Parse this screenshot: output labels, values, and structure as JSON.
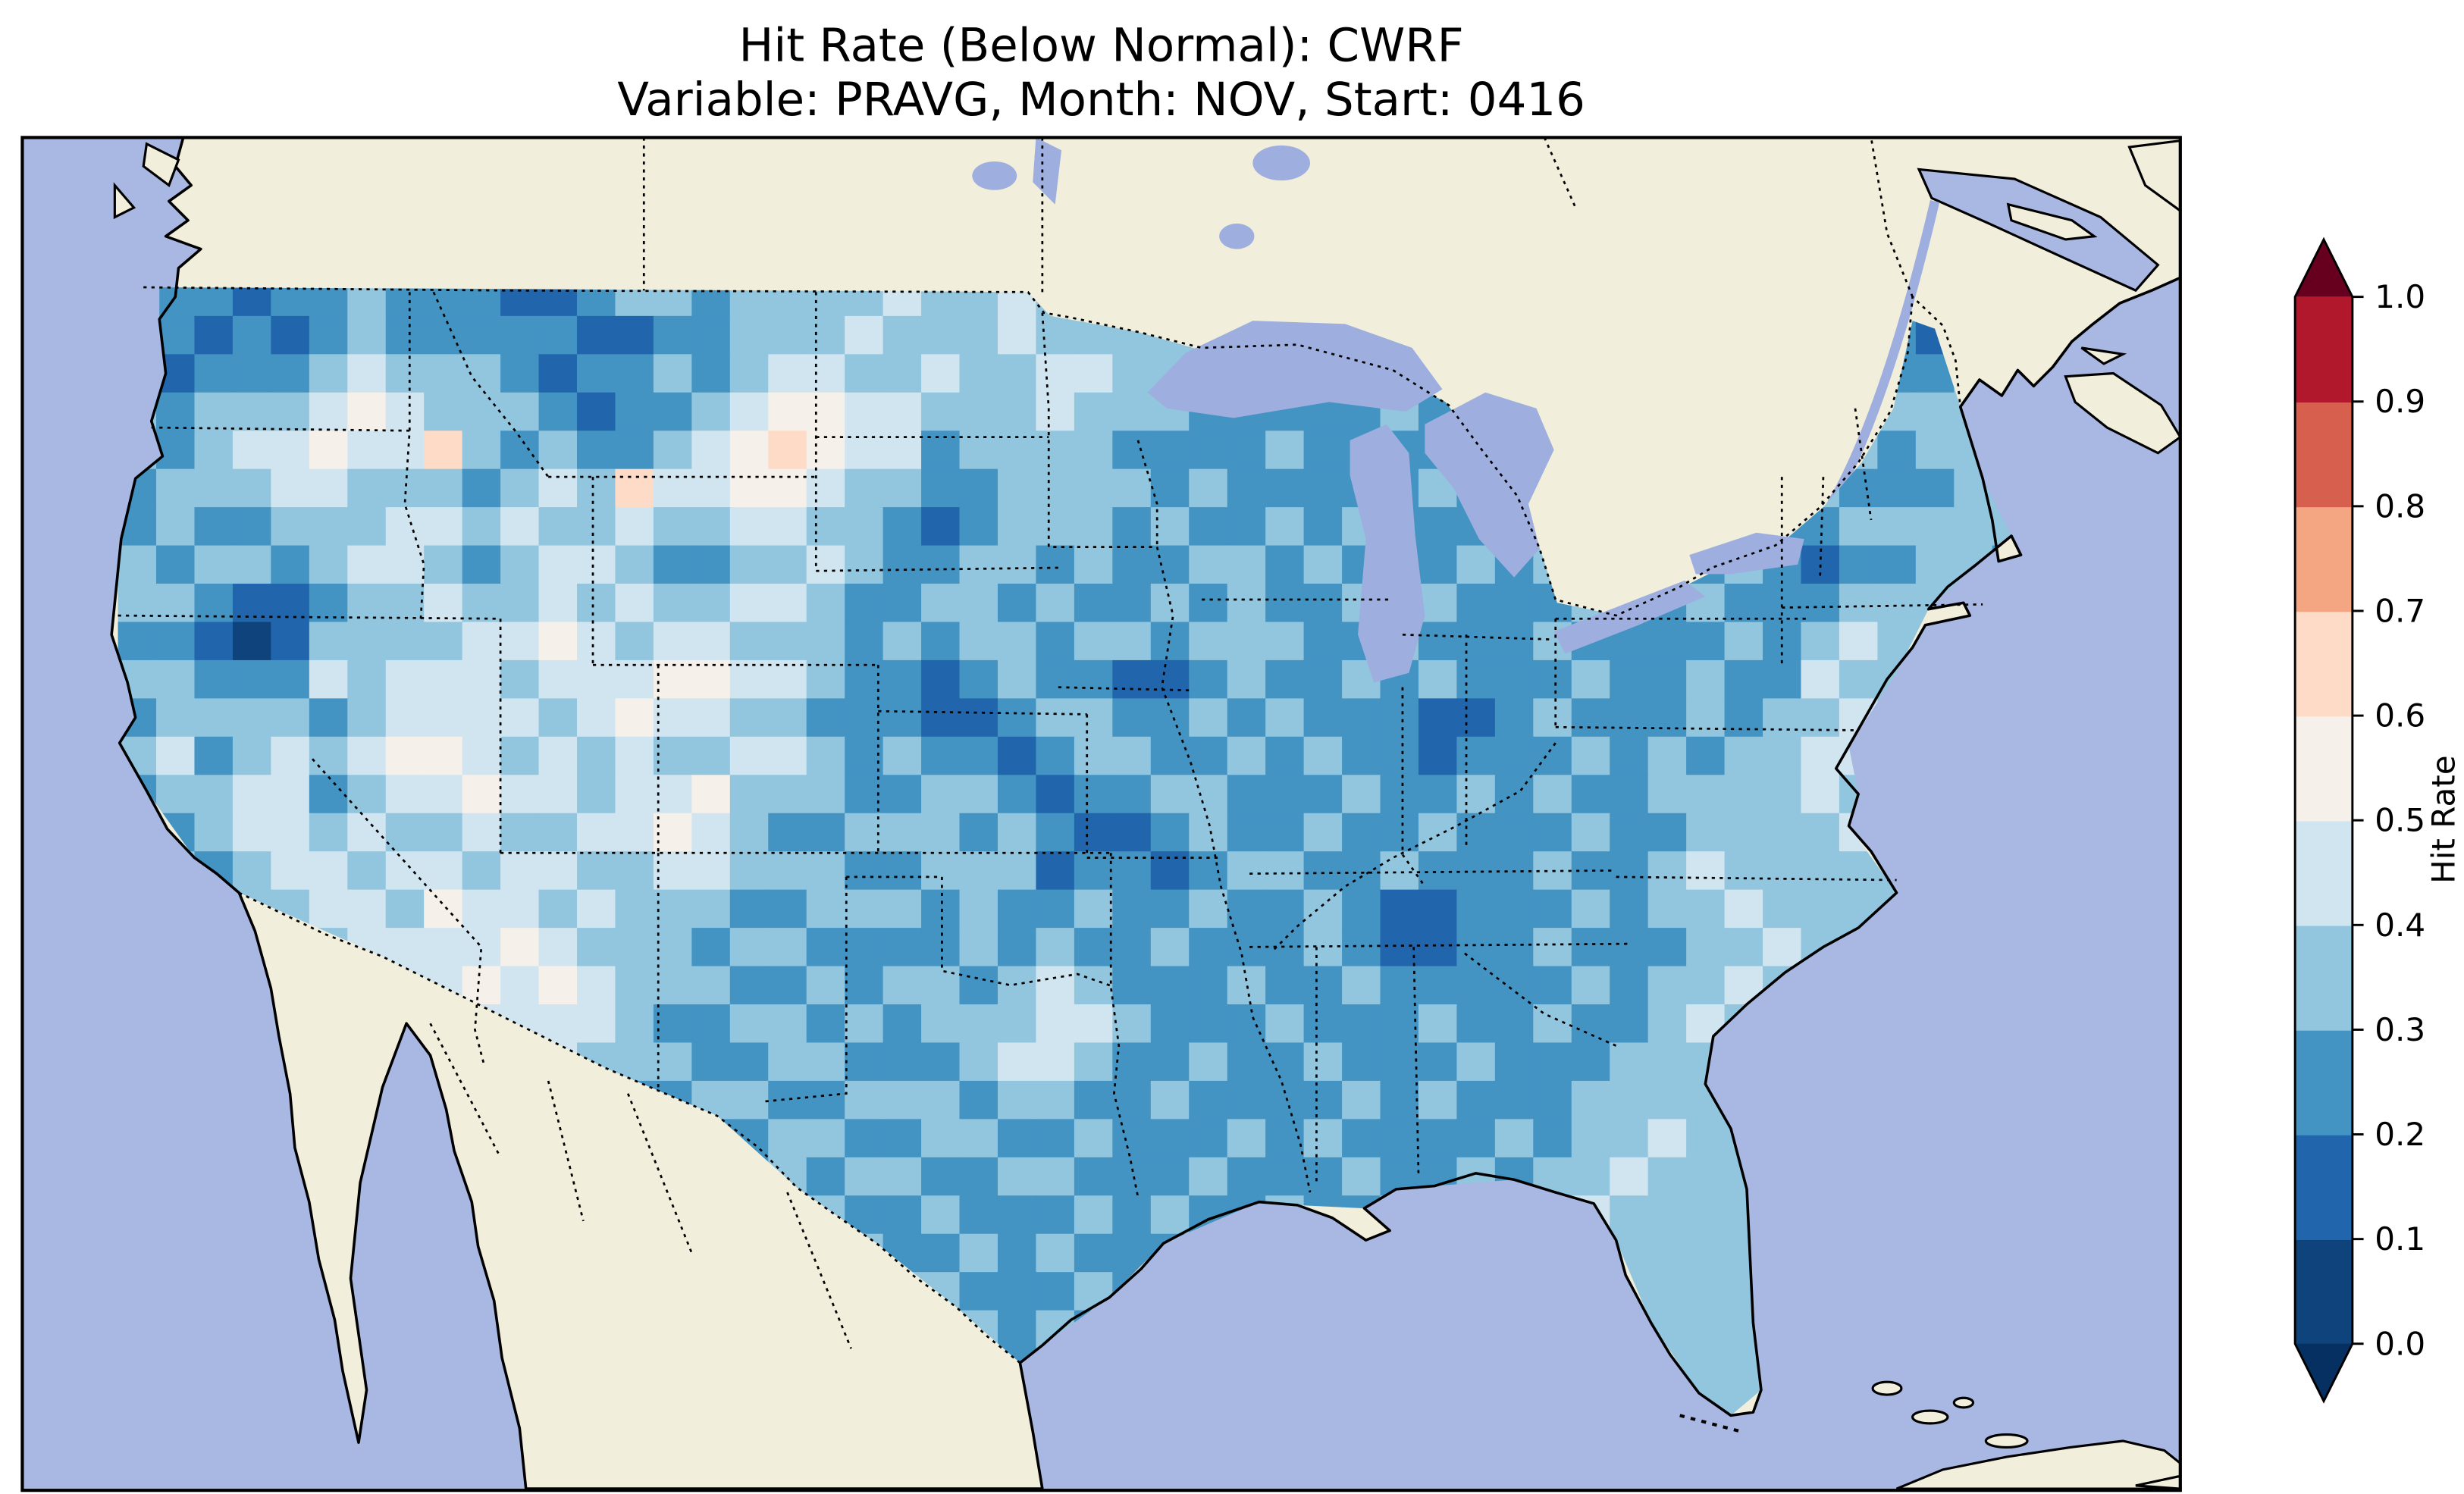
{
  "title": {
    "line1": "Hit Rate (Below Normal): CWRF",
    "line2": "Variable: PRAVG, Month: NOV, Start: 0416"
  },
  "colorbar": {
    "label": "Hit Rate",
    "tick_labels": [
      "0.0",
      "0.1",
      "0.2",
      "0.3",
      "0.4",
      "0.5",
      "0.6",
      "0.7",
      "0.8",
      "0.9",
      "1.0"
    ],
    "under_color": "#053061",
    "over_color": "#67001f",
    "bin_colors": [
      "#0e437b",
      "#2166ac",
      "#4393c3",
      "#92c5de",
      "#d1e5f0",
      "#f5f0ea",
      "#fddbc7",
      "#f4a582",
      "#d6604d",
      "#b2182b"
    ]
  },
  "map": {
    "ocean_color": "#a9b8e2",
    "land_color": "#f1eedb",
    "lake_color": "#9eafdf"
  },
  "chart_data": {
    "type": "heatmap",
    "title": "Hit Rate (Below Normal): CWRF",
    "subtitle": "Variable: PRAVG, Month: NOV, Start: 0416",
    "model": "CWRF",
    "variable": "PRAVG",
    "month": "NOV",
    "start": "0416",
    "metric": "Hit Rate (Below Normal)",
    "region": "Continental United States",
    "legend_label": "Hit Rate",
    "colorbar_ticks": [
      0.0,
      0.1,
      0.2,
      0.3,
      0.4,
      0.5,
      0.6,
      0.7,
      0.8,
      0.9,
      1.0
    ],
    "colormap": "RdBu_r discrete, 0.1 bins, extend both",
    "grid_encoding": "Rows run north to south across the map; each character is one grid cell bin index d meaning hit rate in [d/10,(d+1)/10). Cells outside the US border are clipped/not shown.",
    "grid_rows": [
      "32212232221123323333433433433322222333333333221233",
      "32121232222211223334333433333323222333333333122123",
      "31222343332122323443343344333332322323333332232233",
      "32333454333212234554433343332222232222333322123333",
      "32344544632322345654423333222232222223222232232333",
      "23334433323436445543322333323222223222232222322233",
      "23223334434334334433212333232232322232322322233333",
      "32332344323443223343223323223323222323223232122332",
      "33211233433434334432233232232322323222322322233333",
      "22101333344543443332323323323332232223222232343333",
      "33222434443444554432212322112322323222322322433333",
      "23333234444345443322211233223232221123222323343333",
      "34234345543434334432322123322323221222323233443333",
      "23344234454434453332233212233222322323223333433333",
      "32344343343344543223332321123223223222322333343333",
      "33234434434433443332233312212332232223223433333333",
      "33333443544343332233323223223223211222323343333333",
      "33333344445433323322223232232223211223222334333333",
      "33333434454543332232332343222322322222323343333333",
      "33333343544443223323233344322232223223223433333333",
      "33333334443433322332223443223223222322233333333333",
      "33333333434332233223332332232222323222333333333333",
      "33333333343332322332233223222323222232334333333333",
      "33333333333323232323322332223222322323343333333333",
      "33333333333332323232232223232232233223433333333333",
      "33333333333333232323223232223323322334333333333333",
      "33333333333333323232332223232233233343333333333333",
      "33333333333333332323223232223333333433333333333333",
      "33333333333333333232332223232333334335333333333333",
      "33333333333333333333333232333333344533333333333333"
    ]
  }
}
